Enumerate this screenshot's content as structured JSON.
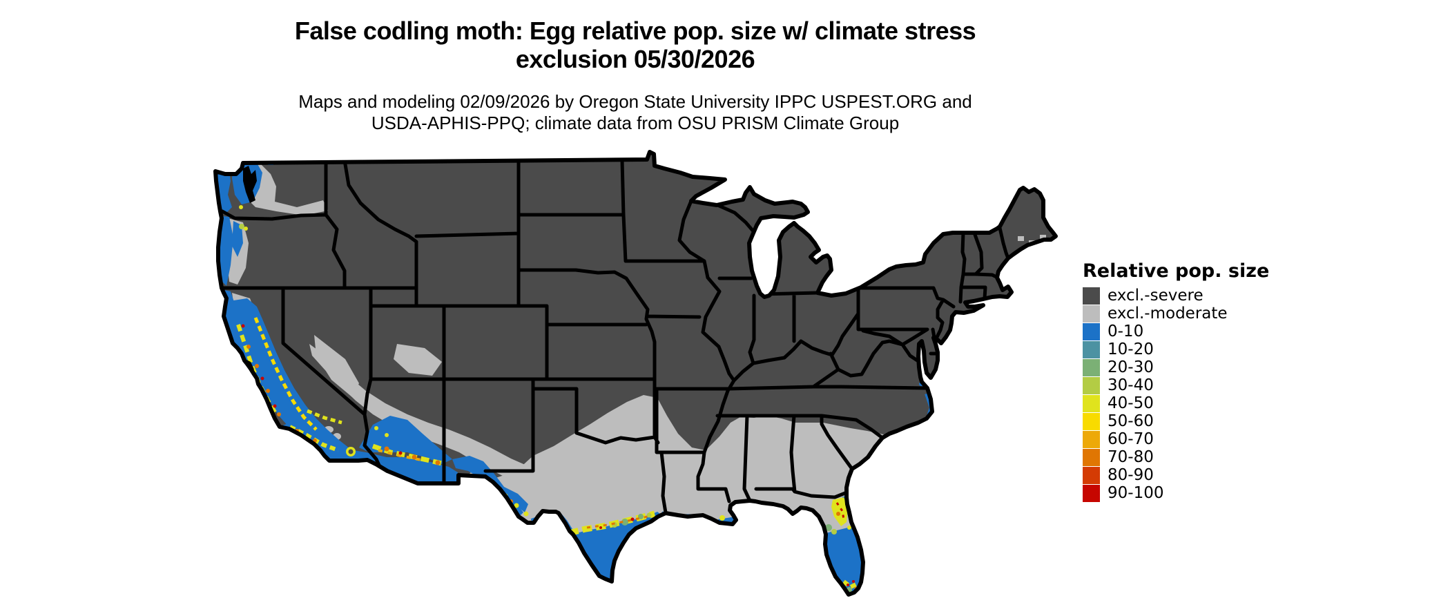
{
  "header": {
    "title_line1": "False codling moth: Egg relative pop. size w/ climate stress",
    "title_line2": "exclusion 05/30/2026",
    "subtitle_line1": "Maps and modeling 02/09/2026 by Oregon State University IPPC USPEST.ORG and",
    "subtitle_line2": "USDA-APHIS-PPQ; climate data from OSU PRISM Climate Group"
  },
  "legend": {
    "title": "Relative pop. size",
    "items": [
      {
        "label": "excl.-severe",
        "color": "#4B4B4B"
      },
      {
        "label": "excl.-moderate",
        "color": "#BDBDBD"
      },
      {
        "label": "0-10",
        "color": "#1C72C7"
      },
      {
        "label": "10-20",
        "color": "#4C92A2"
      },
      {
        "label": "20-30",
        "color": "#7BB075"
      },
      {
        "label": "30-40",
        "color": "#B3CC44"
      },
      {
        "label": "40-50",
        "color": "#E0E31D"
      },
      {
        "label": "50-60",
        "color": "#F8DB00"
      },
      {
        "label": "60-70",
        "color": "#EDA908"
      },
      {
        "label": "70-80",
        "color": "#E07603"
      },
      {
        "label": "80-90",
        "color": "#D43B04"
      },
      {
        "label": "90-100",
        "color": "#C60600"
      }
    ]
  },
  "map": {
    "border_color": "#000000",
    "background": "#FFFFFF",
    "region_name": "Continental United States"
  }
}
